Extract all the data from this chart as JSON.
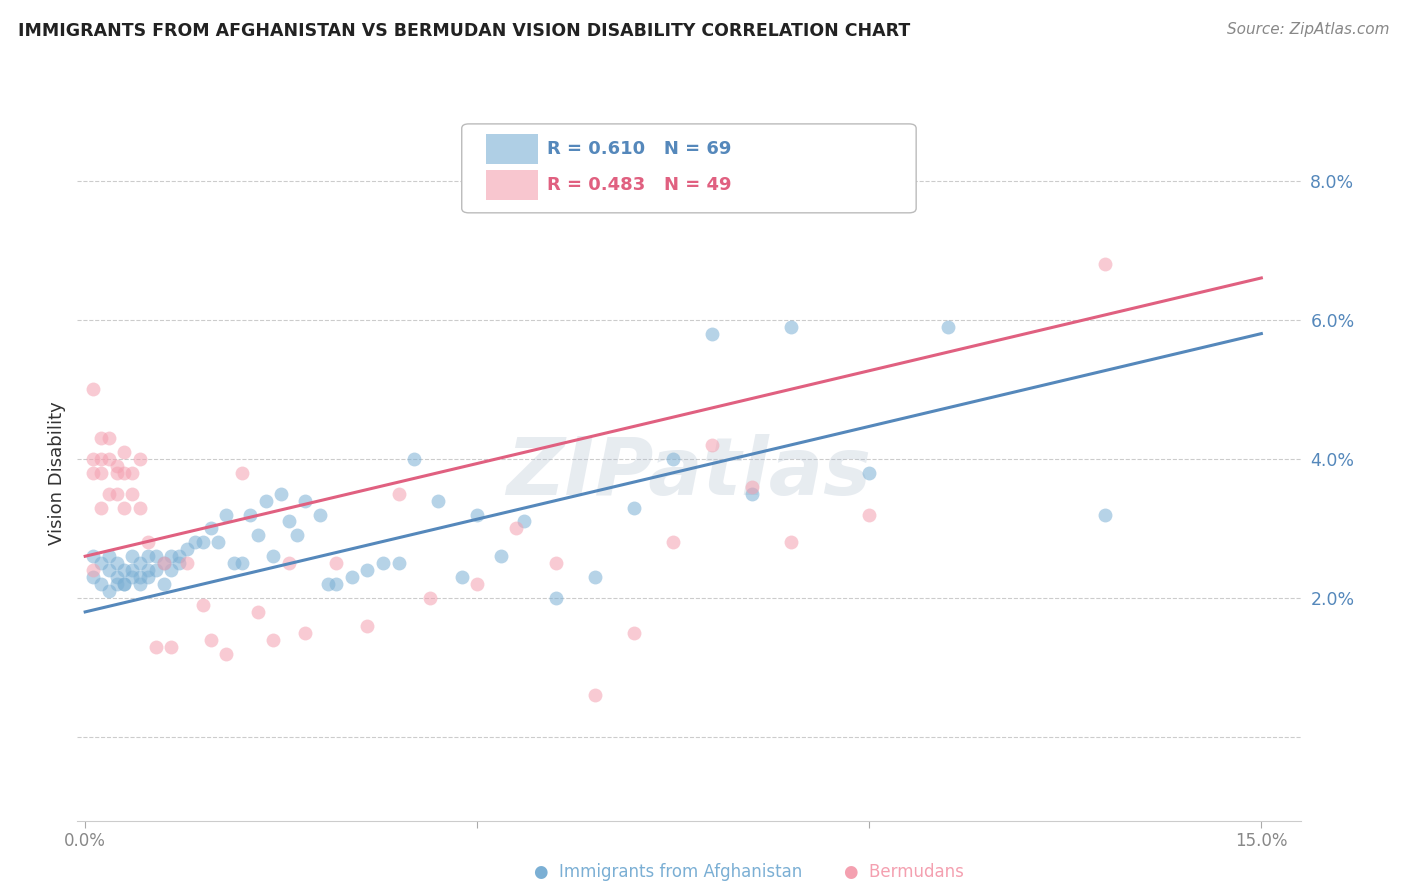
{
  "title": "IMMIGRANTS FROM AFGHANISTAN VS BERMUDAN VISION DISABILITY CORRELATION CHART",
  "source": "Source: ZipAtlas.com",
  "ylabel": "Vision Disability",
  "yticks": [
    0.0,
    0.02,
    0.04,
    0.06,
    0.08
  ],
  "ytick_labels": [
    "",
    "2.0%",
    "4.0%",
    "6.0%",
    "8.0%"
  ],
  "xticks": [
    0.0,
    0.05,
    0.1,
    0.15
  ],
  "xtick_labels": [
    "0.0%",
    "",
    "",
    "15.0%"
  ],
  "xlim": [
    -0.001,
    0.155
  ],
  "ylim": [
    -0.012,
    0.088
  ],
  "blue_color": "#7BAFD4",
  "pink_color": "#F4A0B0",
  "blue_line_color": "#5588BB",
  "pink_line_color": "#E06080",
  "watermark": "ZIPatlas",
  "legend_label_blue": "Immigrants from Afghanistan",
  "legend_label_pink": "Bermudans",
  "blue_scatter_x": [
    0.001,
    0.001,
    0.002,
    0.002,
    0.003,
    0.003,
    0.003,
    0.004,
    0.004,
    0.004,
    0.005,
    0.005,
    0.005,
    0.006,
    0.006,
    0.006,
    0.007,
    0.007,
    0.007,
    0.008,
    0.008,
    0.008,
    0.009,
    0.009,
    0.01,
    0.01,
    0.011,
    0.011,
    0.012,
    0.012,
    0.013,
    0.014,
    0.015,
    0.016,
    0.017,
    0.018,
    0.019,
    0.02,
    0.021,
    0.022,
    0.023,
    0.024,
    0.025,
    0.026,
    0.027,
    0.028,
    0.03,
    0.031,
    0.032,
    0.034,
    0.036,
    0.038,
    0.04,
    0.042,
    0.045,
    0.048,
    0.05,
    0.053,
    0.056,
    0.06,
    0.065,
    0.07,
    0.075,
    0.08,
    0.085,
    0.09,
    0.1,
    0.11,
    0.13
  ],
  "blue_scatter_y": [
    0.026,
    0.023,
    0.022,
    0.025,
    0.021,
    0.024,
    0.026,
    0.022,
    0.025,
    0.023,
    0.022,
    0.024,
    0.022,
    0.023,
    0.026,
    0.024,
    0.023,
    0.025,
    0.022,
    0.024,
    0.026,
    0.023,
    0.024,
    0.026,
    0.025,
    0.022,
    0.024,
    0.026,
    0.026,
    0.025,
    0.027,
    0.028,
    0.028,
    0.03,
    0.028,
    0.032,
    0.025,
    0.025,
    0.032,
    0.029,
    0.034,
    0.026,
    0.035,
    0.031,
    0.029,
    0.034,
    0.032,
    0.022,
    0.022,
    0.023,
    0.024,
    0.025,
    0.025,
    0.04,
    0.034,
    0.023,
    0.032,
    0.026,
    0.031,
    0.02,
    0.023,
    0.033,
    0.04,
    0.058,
    0.035,
    0.059,
    0.038,
    0.059,
    0.032
  ],
  "pink_scatter_x": [
    0.001,
    0.001,
    0.001,
    0.001,
    0.002,
    0.002,
    0.002,
    0.002,
    0.003,
    0.003,
    0.003,
    0.004,
    0.004,
    0.004,
    0.005,
    0.005,
    0.005,
    0.006,
    0.006,
    0.007,
    0.007,
    0.008,
    0.009,
    0.01,
    0.011,
    0.013,
    0.015,
    0.016,
    0.018,
    0.02,
    0.022,
    0.024,
    0.026,
    0.028,
    0.032,
    0.036,
    0.04,
    0.044,
    0.05,
    0.055,
    0.06,
    0.065,
    0.07,
    0.075,
    0.08,
    0.085,
    0.09,
    0.1,
    0.13
  ],
  "pink_scatter_y": [
    0.05,
    0.04,
    0.038,
    0.024,
    0.043,
    0.04,
    0.038,
    0.033,
    0.043,
    0.04,
    0.035,
    0.039,
    0.038,
    0.035,
    0.041,
    0.038,
    0.033,
    0.038,
    0.035,
    0.033,
    0.04,
    0.028,
    0.013,
    0.025,
    0.013,
    0.025,
    0.019,
    0.014,
    0.012,
    0.038,
    0.018,
    0.014,
    0.025,
    0.015,
    0.025,
    0.016,
    0.035,
    0.02,
    0.022,
    0.03,
    0.025,
    0.006,
    0.015,
    0.028,
    0.042,
    0.036,
    0.028,
    0.032,
    0.068
  ],
  "blue_trend_x": [
    0.0,
    0.15
  ],
  "blue_trend_y": [
    0.018,
    0.058
  ],
  "pink_trend_x": [
    0.0,
    0.15
  ],
  "pink_trend_y": [
    0.026,
    0.066
  ]
}
